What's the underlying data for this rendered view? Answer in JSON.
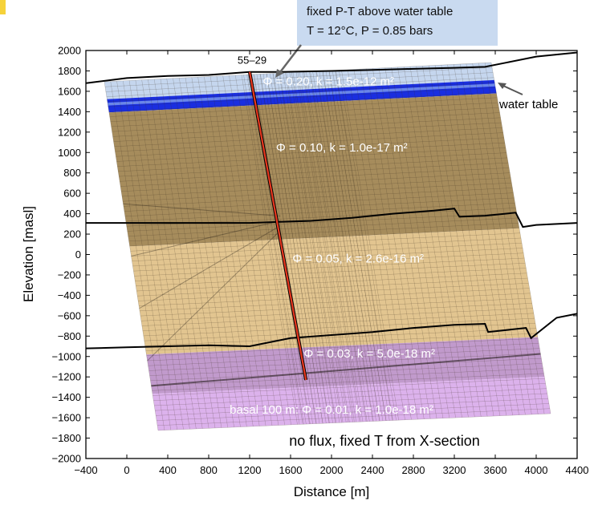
{
  "chart_data": {
    "type": "diagram-cross-section",
    "xlabel": "Distance [m]",
    "ylabel": "Elevation [masl]",
    "xlim": [
      -400,
      4400
    ],
    "ylim": [
      -2000,
      2000
    ],
    "xticks": [
      "−400",
      "0",
      "400",
      "800",
      "1200",
      "1600",
      "2000",
      "2400",
      "2800",
      "3200",
      "3600",
      "4000",
      "4400"
    ],
    "yticks": [
      "2000",
      "1800",
      "1600",
      "1400",
      "1200",
      "1000",
      "800",
      "600",
      "400",
      "200",
      "0",
      "−200",
      "−400",
      "−600",
      "−800",
      "−1000",
      "−1200",
      "−1400",
      "−1600",
      "−1800",
      "−2000"
    ],
    "callout": {
      "line1": "fixed P-T above water table",
      "line2": "T = 12°C, P = 0.85 bars"
    },
    "well": {
      "label": "55–29",
      "top": [
        1200,
        1790
      ],
      "bottom": [
        1750,
        -1230
      ]
    },
    "water_table_label": "water table",
    "bottom_boundary_label": "no flux, fixed T from X-section",
    "zones": [
      {
        "label": "Φ = 0.20, k = 1.5e-12 m²",
        "color": "#c5d6ee",
        "label_at": [
          1970,
          1660
        ]
      },
      {
        "label": "Φ = 0.10, k = 1.0e-17 m²",
        "color": "#a68c5c",
        "label_at": [
          2100,
          1010
        ]
      },
      {
        "label": "Φ = 0.05, k = 2.6e-16 m²",
        "color": "#e2c590",
        "label_at": [
          2260,
          -80
        ]
      },
      {
        "label": "Φ = 0.03, k = 5.0e-18 m²",
        "color": "#c19acc",
        "label_at": [
          2370,
          -1010
        ]
      },
      {
        "label": "basal 100 m: Φ = 0.01, k = 1.0e-18 m²",
        "color": "#dcb2ec",
        "label_at": [
          2000,
          -1560
        ]
      }
    ],
    "water_table_band_color": "#1a2ee0",
    "regional_boundaries": [
      {
        "name": "topography",
        "points": [
          [
            -400,
            1680
          ],
          [
            0,
            1730
          ],
          [
            400,
            1750
          ],
          [
            800,
            1760
          ],
          [
            1200,
            1790
          ],
          [
            1500,
            1790
          ],
          [
            2000,
            1800
          ],
          [
            2400,
            1810
          ],
          [
            2800,
            1820
          ],
          [
            3200,
            1830
          ],
          [
            3500,
            1840
          ],
          [
            3700,
            1880
          ],
          [
            4000,
            1940
          ],
          [
            4400,
            1980
          ]
        ]
      },
      {
        "name": "upper-contact",
        "points": [
          [
            -400,
            310
          ],
          [
            0,
            310
          ],
          [
            400,
            310
          ],
          [
            800,
            310
          ],
          [
            1200,
            310
          ],
          [
            1500,
            320
          ],
          [
            1800,
            330
          ],
          [
            2200,
            360
          ],
          [
            2600,
            400
          ],
          [
            3000,
            430
          ],
          [
            3200,
            450
          ],
          [
            3250,
            370
          ],
          [
            3500,
            380
          ],
          [
            3800,
            410
          ],
          [
            3870,
            270
          ],
          [
            4000,
            290
          ],
          [
            4400,
            310
          ]
        ]
      },
      {
        "name": "lower-contact",
        "points": [
          [
            -400,
            -920
          ],
          [
            0,
            -910
          ],
          [
            400,
            -900
          ],
          [
            800,
            -890
          ],
          [
            1200,
            -900
          ],
          [
            1600,
            -820
          ],
          [
            2000,
            -790
          ],
          [
            2400,
            -760
          ],
          [
            2800,
            -720
          ],
          [
            3200,
            -690
          ],
          [
            3500,
            -680
          ],
          [
            3530,
            -760
          ],
          [
            3900,
            -720
          ],
          [
            3950,
            -820
          ],
          [
            4200,
            -620
          ],
          [
            4400,
            -580
          ]
        ]
      }
    ]
  }
}
